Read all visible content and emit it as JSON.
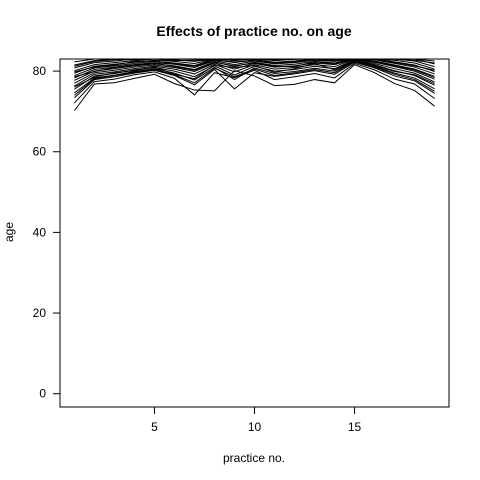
{
  "chart_data": {
    "type": "line",
    "title": "Effects of practice no. on age",
    "xlabel": "practice no.",
    "ylabel": "age",
    "xlim": [
      0.28,
      19.72
    ],
    "ylim": [
      -3.3,
      83
    ],
    "x_ticks": [
      5,
      10,
      15
    ],
    "y_ticks": [
      0,
      20,
      40,
      60,
      80
    ],
    "grid": false,
    "legend": "none",
    "line_color": "#000000",
    "x": [
      1,
      2,
      3,
      4,
      5,
      6,
      7,
      8,
      9,
      10,
      11,
      12,
      13,
      14,
      15,
      16,
      17,
      18,
      19
    ],
    "series": [
      {
        "values": [
          70.2,
          76.8,
          77.1,
          78.2,
          79.2,
          76.9,
          75.3,
          75.1,
          80.1,
          78.8,
          76.4,
          76.7,
          77.9,
          77.1,
          81.6,
          79.6,
          76.9,
          75.2,
          71.3
        ]
      },
      {
        "values": [
          72.1,
          77.4,
          78.0,
          79.1,
          79.8,
          78.2,
          74.1,
          79.6,
          78.4,
          80.2,
          77.9,
          78.6,
          79.4,
          78.3,
          81.9,
          80.3,
          78.0,
          76.8,
          73.2
        ]
      },
      {
        "values": [
          73.4,
          77.9,
          78.6,
          79.5,
          80.2,
          78.9,
          76.6,
          80.4,
          75.6,
          79.6,
          78.7,
          79.3,
          80.1,
          79.2,
          82.2,
          80.8,
          78.8,
          77.6,
          74.5
        ]
      },
      {
        "values": [
          74.6,
          78.3,
          79.0,
          79.9,
          80.6,
          79.5,
          77.8,
          80.9,
          77.9,
          80.8,
          79.4,
          79.9,
          80.7,
          80.0,
          82.5,
          81.2,
          79.5,
          78.3,
          75.6
        ]
      },
      {
        "values": [
          75.5,
          78.8,
          79.4,
          80.3,
          80.9,
          80.0,
          78.6,
          81.3,
          79.0,
          81.2,
          80.0,
          80.4,
          81.2,
          80.6,
          82.8,
          81.6,
          80.1,
          78.9,
          76.5
        ]
      },
      {
        "values": [
          76.3,
          79.2,
          79.8,
          80.6,
          81.2,
          80.5,
          79.3,
          81.7,
          79.8,
          81.6,
          80.5,
          80.9,
          81.6,
          81.1,
          83.0,
          81.9,
          80.6,
          79.5,
          77.3
        ]
      },
      {
        "values": [
          77.0,
          79.6,
          80.2,
          81.0,
          81.5,
          80.9,
          79.9,
          82.0,
          80.5,
          81.9,
          81.0,
          81.3,
          82.0,
          81.6,
          83.0,
          82.2,
          81.1,
          80.0,
          78.0
        ]
      },
      {
        "values": [
          77.7,
          80.0,
          80.6,
          81.3,
          81.8,
          81.3,
          80.4,
          82.3,
          81.1,
          82.2,
          81.4,
          81.7,
          82.4,
          82.0,
          83.0,
          82.5,
          81.5,
          80.5,
          78.7
        ]
      },
      {
        "values": [
          78.3,
          80.4,
          81.0,
          81.6,
          82.1,
          81.7,
          80.9,
          82.6,
          81.6,
          82.5,
          81.8,
          82.1,
          82.7,
          82.4,
          83.0,
          82.8,
          81.9,
          81.0,
          79.3
        ]
      },
      {
        "values": [
          78.9,
          80.8,
          81.3,
          81.9,
          82.4,
          82.0,
          81.4,
          82.9,
          82.1,
          82.8,
          82.2,
          82.5,
          83.0,
          82.8,
          83.0,
          83.0,
          82.3,
          81.5,
          79.9
        ]
      },
      {
        "values": [
          79.5,
          81.2,
          81.7,
          82.2,
          82.7,
          82.4,
          81.9,
          83.0,
          82.6,
          83.0,
          82.6,
          82.9,
          83.0,
          83.0,
          83.0,
          83.0,
          82.7,
          82.0,
          80.5
        ]
      },
      {
        "values": [
          80.1,
          81.6,
          82.1,
          82.6,
          83.0,
          82.8,
          82.4,
          83.0,
          83.0,
          83.0,
          83.0,
          83.0,
          83.0,
          83.0,
          83.0,
          83.0,
          83.0,
          82.5,
          81.1
        ]
      },
      {
        "values": [
          80.8,
          82.1,
          82.5,
          83.0,
          83.0,
          83.0,
          82.9,
          83.0,
          83.0,
          83.0,
          83.0,
          83.0,
          83.0,
          83.0,
          83.0,
          83.0,
          83.0,
          83.0,
          81.8
        ]
      },
      {
        "values": [
          81.5,
          82.6,
          83.0,
          83.0,
          83.0,
          83.0,
          83.0,
          83.0,
          83.0,
          83.0,
          83.0,
          83.0,
          83.0,
          83.0,
          83.0,
          83.0,
          83.0,
          83.0,
          82.5
        ]
      },
      {
        "values": [
          82.3,
          83.0,
          83.0,
          83.0,
          83.0,
          83.0,
          83.0,
          83.0,
          83.0,
          83.0,
          83.0,
          83.0,
          83.0,
          83.0,
          83.0,
          83.0,
          83.0,
          83.0,
          83.0
        ]
      },
      {
        "values": [
          76.0,
          78.5,
          79.6,
          80.1,
          81.0,
          79.2,
          78.1,
          81.5,
          80.9,
          81.4,
          79.7,
          80.6,
          81.9,
          80.3,
          82.7,
          81.4,
          79.9,
          79.1,
          76.9
        ]
      },
      {
        "values": [
          78.6,
          79.9,
          80.9,
          81.4,
          82.0,
          81.1,
          80.2,
          82.2,
          81.3,
          82.0,
          81.2,
          81.1,
          82.3,
          81.8,
          82.9,
          82.4,
          81.3,
          80.3,
          78.4
        ]
      },
      {
        "values": [
          79.8,
          81.0,
          81.5,
          82.4,
          82.5,
          81.8,
          81.2,
          82.7,
          82.3,
          82.6,
          82.0,
          82.3,
          82.9,
          82.6,
          83.0,
          82.9,
          82.1,
          81.3,
          80.2
        ]
      },
      {
        "values": [
          74.0,
          78.1,
          78.9,
          79.7,
          80.4,
          79.1,
          77.1,
          80.7,
          78.6,
          80.5,
          78.9,
          79.6,
          80.4,
          79.6,
          82.4,
          81.0,
          79.2,
          77.9,
          75.0
        ]
      },
      {
        "values": [
          81.2,
          82.4,
          82.8,
          82.8,
          83.0,
          82.6,
          82.7,
          83.0,
          82.8,
          83.0,
          82.8,
          83.0,
          83.0,
          83.0,
          83.0,
          83.0,
          82.9,
          82.7,
          82.0
        ]
      }
    ]
  }
}
